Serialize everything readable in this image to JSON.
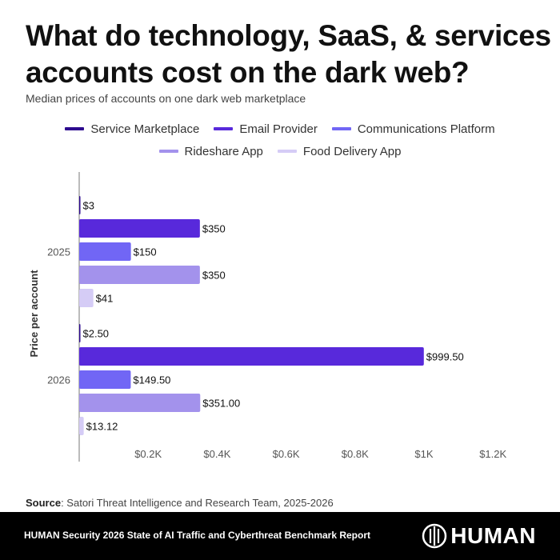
{
  "header": {
    "title": "What do technology, SaaS, & services accounts cost on the dark web?",
    "subtitle": "Median prices of accounts on one dark web marketplace"
  },
  "legend": [
    {
      "label": "Service Marketplace",
      "color": "#2d0a8f"
    },
    {
      "label": "Email Provider",
      "color": "#5829db"
    },
    {
      "label": "Communications Platform",
      "color": "#7166f5"
    },
    {
      "label": "Rideshare App",
      "color": "#a392ec"
    },
    {
      "label": "Food Delivery App",
      "color": "#d5ccf6"
    }
  ],
  "chart_data": {
    "type": "bar",
    "orientation": "horizontal",
    "title": "What do technology, SaaS, & services accounts cost on the dark web?",
    "subtitle": "Median prices of accounts on one dark web marketplace",
    "xlabel": "",
    "ylabel": "Price per account",
    "categories": [
      "2025",
      "2026"
    ],
    "series": [
      {
        "name": "Service Marketplace",
        "color": "#2d0a8f",
        "values": [
          3,
          2.5
        ],
        "labels": [
          "$3",
          "$2.50"
        ]
      },
      {
        "name": "Email Provider",
        "color": "#5829db",
        "values": [
          350,
          999.5
        ],
        "labels": [
          "$350",
          "$999.50"
        ]
      },
      {
        "name": "Communications Platform",
        "color": "#7166f5",
        "values": [
          150,
          149.5
        ],
        "labels": [
          "$150",
          "$149.50"
        ]
      },
      {
        "name": "Rideshare App",
        "color": "#a392ec",
        "values": [
          350,
          351
        ],
        "labels": [
          "$350",
          "$351.00"
        ]
      },
      {
        "name": "Food Delivery App",
        "color": "#d5ccf6",
        "values": [
          41,
          13.12
        ],
        "labels": [
          "$41",
          "$13.12"
        ]
      }
    ],
    "xlim": [
      0,
      1200
    ],
    "xticks": [
      200,
      400,
      600,
      800,
      1000,
      1200
    ],
    "xtick_labels": [
      "$0.2K",
      "$0.4K",
      "$0.6K",
      "$0.8K",
      "$1K",
      "$1.2K"
    ],
    "grid": false,
    "legend_position": "top-center"
  },
  "source": {
    "label": "Source",
    "text": ": Satori Threat Intelligence and Research Team, 2025-2026"
  },
  "footer": {
    "report": "HUMAN Security 2026 State of AI Traffic and Cyberthreat Benchmark Report",
    "brand": "HUMAN"
  }
}
